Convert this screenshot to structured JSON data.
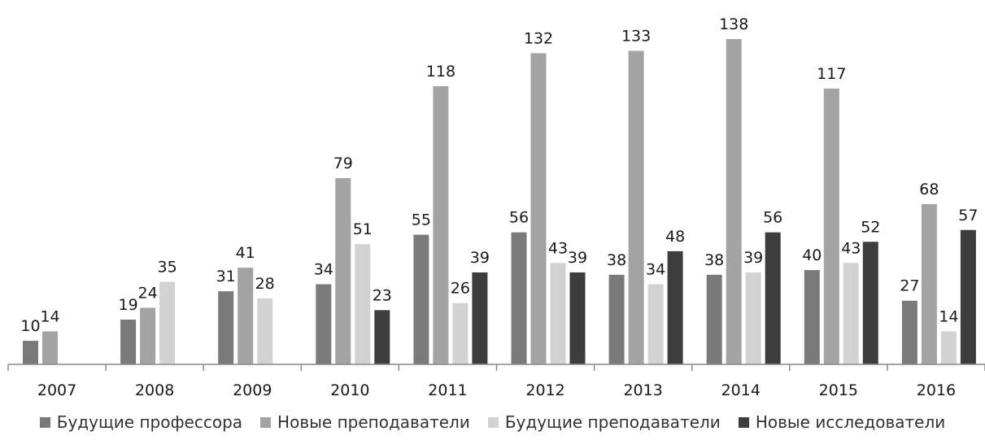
{
  "chart_data": {
    "type": "bar",
    "categories": [
      "2007",
      "2008",
      "2009",
      "2010",
      "2011",
      "2012",
      "2013",
      "2014",
      "2015",
      "2016"
    ],
    "series": [
      {
        "name": "Будущие профессора",
        "color": "#7a7a7a",
        "values": [
          10,
          19,
          31,
          34,
          55,
          56,
          38,
          38,
          40,
          27
        ]
      },
      {
        "name": "Новые преподаватели",
        "color": "#a3a3a3",
        "values": [
          14,
          24,
          41,
          79,
          118,
          132,
          133,
          138,
          117,
          68
        ]
      },
      {
        "name": "Будущие преподаватели",
        "color": "#d2d2d2",
        "values": [
          null,
          35,
          28,
          51,
          26,
          43,
          34,
          39,
          43,
          14
        ]
      },
      {
        "name": "Новые исследователи",
        "color": "#3d3d3d",
        "values": [
          null,
          null,
          null,
          23,
          39,
          39,
          48,
          56,
          52,
          57
        ]
      }
    ],
    "title": "",
    "xlabel": "",
    "ylabel": "",
    "ylim": [
      0,
      150
    ],
    "legend_position": "bottom",
    "grid": false,
    "data_labels": true
  }
}
